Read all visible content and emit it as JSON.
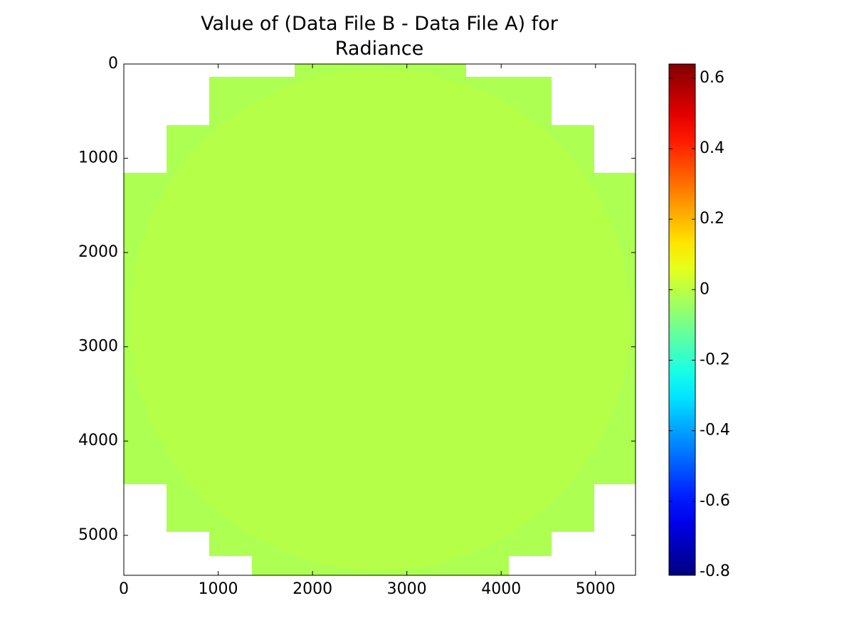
{
  "chart_data": {
    "type": "heatmap",
    "title": "Value of (Data File B - Data File A) for Radiance",
    "xlim": [
      0,
      5424
    ],
    "ylim": [
      5424,
      0
    ],
    "xticks": [
      0,
      1000,
      2000,
      3000,
      4000,
      5000
    ],
    "yticks": [
      0,
      1000,
      2000,
      3000,
      4000,
      5000
    ],
    "colormap": "jet",
    "colorbar": {
      "clim": [
        -0.81,
        0.64
      ],
      "ticks": [
        -0.8,
        -0.6,
        -0.4,
        -0.2,
        0,
        0.2,
        0.4,
        0.6
      ]
    },
    "regions": [
      {
        "x": [
          1810,
          3628
        ],
        "y": [
          0,
          136
        ],
        "value": -0.02
      },
      {
        "x": [
          905,
          4534
        ],
        "y": [
          136,
          649
        ],
        "value": -0.02
      },
      {
        "x": [
          453,
          4986
        ],
        "y": [
          649,
          1154
        ],
        "value": -0.02
      },
      {
        "x": [
          0,
          5424
        ],
        "y": [
          1154,
          4458
        ],
        "value": -0.02
      },
      {
        "x": [
          453,
          4986
        ],
        "y": [
          4458,
          4963
        ],
        "value": -0.02
      },
      {
        "x": [
          905,
          4534
        ],
        "y": [
          4963,
          5220
        ],
        "value": -0.02
      },
      {
        "x": [
          1357,
          4081
        ],
        "y": [
          5220,
          5424
        ],
        "value": -0.02
      }
    ],
    "disk": {
      "center": [
        2712,
        2712
      ],
      "radius": 2660,
      "value": 0.0
    }
  }
}
